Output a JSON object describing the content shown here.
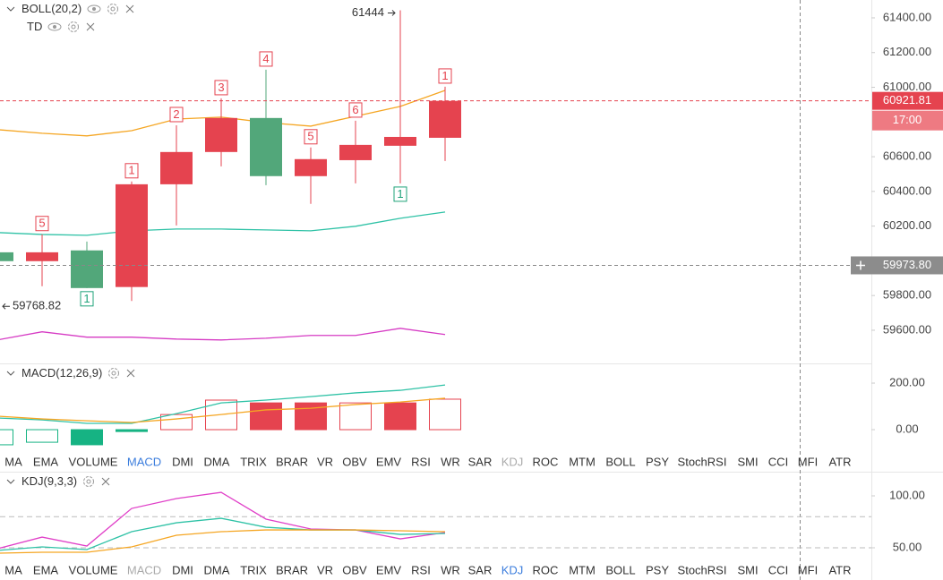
{
  "chart_data": [
    {
      "type": "candlestick",
      "title": "BOLL(20,2)",
      "overlay_title": "TD",
      "categories": [
        null,
        null,
        null,
        null,
        null,
        null,
        null,
        null,
        null,
        null,
        null
      ],
      "open": [
        60049,
        59998,
        60060,
        59849,
        60441,
        60627,
        60823,
        60488,
        60580,
        60663,
        60709
      ],
      "high": [
        60075,
        60153,
        60111,
        60457,
        60781,
        60936,
        61101,
        60653,
        60807,
        61444,
        61003
      ],
      "low": [
        59975,
        59854,
        59843,
        59768.82,
        60204,
        60544,
        60436,
        60328,
        60446,
        60446,
        60575
      ],
      "close": [
        59998,
        60049,
        59843,
        60441,
        60627,
        60823,
        60488,
        60586,
        60668,
        60714,
        60921.81
      ],
      "up_color": "#e5434f",
      "down_color": "#52a77a",
      "series": [
        {
          "color": "#f5a623",
          "values": [
            60756,
            60735,
            60720,
            60750,
            60817,
            60828,
            60797,
            60776,
            60833,
            60890,
            60982
          ]
        },
        {
          "color": "#2fc2a6",
          "values": [
            60163,
            60152,
            60147,
            60173,
            60183,
            60183,
            60178,
            60173,
            60199,
            60245,
            60281
          ]
        },
        {
          "color": "#d63bc4",
          "values": [
            59544,
            59591,
            59560,
            59560,
            59549,
            59544,
            59554,
            59570,
            59570,
            59611,
            59575
          ]
        }
      ],
      "td_marks": [
        {
          "index": 1,
          "value": 5,
          "position": "above",
          "color": "#e5434f"
        },
        {
          "index": 2,
          "value": 1,
          "position": "below",
          "color": "#1fa37a"
        },
        {
          "index": 3,
          "value": 1,
          "position": "above",
          "color": "#e5434f"
        },
        {
          "index": 4,
          "value": 2,
          "position": "above",
          "color": "#e5434f"
        },
        {
          "index": 5,
          "value": 3,
          "position": "above",
          "color": "#e5434f"
        },
        {
          "index": 6,
          "value": 4,
          "position": "above",
          "color": "#e5434f"
        },
        {
          "index": 7,
          "value": 5,
          "position": "above",
          "color": "#e5434f"
        },
        {
          "index": 8,
          "value": 6,
          "position": "above",
          "color": "#e5434f"
        },
        {
          "index": 9,
          "value": 1,
          "position": "below",
          "color": "#1fa37a"
        },
        {
          "index": 10,
          "value": 1,
          "position": "above",
          "color": "#e5434f"
        }
      ],
      "countdown": "17:00",
      "crosshair": {
        "value": 59973.8,
        "label": "59973.80"
      },
      "ylim": [
        59414,
        61503
      ],
      "yticks": [
        {
          "value": 59600,
          "label": "59600.00"
        },
        {
          "value": 59800,
          "label": "59800.00"
        },
        {
          "value": 60200,
          "label": "60200.00"
        },
        {
          "value": 60400,
          "label": "60400.00"
        },
        {
          "value": 60600,
          "label": "60600.00"
        },
        {
          "value": 61000,
          "label": "61000.00"
        },
        {
          "value": 61200,
          "label": "61200.00"
        },
        {
          "value": 61400,
          "label": "61400.00"
        }
      ]
    },
    {
      "type": "macd",
      "title": "MACD(12,26,9)",
      "categories": [
        null,
        null,
        null,
        null,
        null,
        null,
        null,
        null,
        null,
        null,
        null
      ],
      "values": [
        -65,
        -54,
        -65,
        -8,
        65,
        127,
        115,
        115,
        115,
        115,
        131
      ],
      "styles": [
        "hollow",
        "hollow",
        "filled",
        "filled",
        "hollow",
        "hollow",
        "filled",
        "filled",
        "hollow",
        "filled",
        "hollow"
      ],
      "pos_color": "#e5434f",
      "neg_color": "#16b383",
      "series": [
        {
          "color": "#2fc2a6",
          "values": [
            50,
            42,
            27,
            27,
            69,
            115,
            127,
            142,
            158,
            169,
            192
          ]
        },
        {
          "color": "#f5a623",
          "values": [
            58,
            46,
            38,
            31,
            46,
            65,
            85,
            92,
            108,
            119,
            135
          ]
        }
      ],
      "ylim": [
        -96,
        277
      ],
      "yticks": [
        {
          "value": 0,
          "label": "0.00"
        },
        {
          "value": 200,
          "label": "200.00"
        }
      ]
    },
    {
      "type": "line",
      "title": "KDJ(9,3,3)",
      "categories": [
        null,
        null,
        null,
        null,
        null,
        null,
        null,
        null,
        null,
        null,
        null
      ],
      "series": [
        {
          "color": "#e040c8",
          "values": [
            49.1,
            60.3,
            51.7,
            87.9,
            97.4,
            103.4,
            77.6,
            68.1,
            67.2,
            58.6,
            64.7
          ]
        },
        {
          "color": "#2fc2a6",
          "values": [
            47.4,
            50.9,
            48.3,
            65.5,
            74.1,
            78.4,
            69.8,
            67.2,
            67.2,
            62.9,
            63.8
          ]
        },
        {
          "color": "#f5a623",
          "values": [
            44.8,
            45.7,
            45.7,
            50.9,
            62.1,
            65.5,
            67.2,
            67.2,
            67.2,
            66.4,
            65.5
          ]
        }
      ],
      "levels": [
        80,
        50
      ],
      "ylim": [
        38.8,
        120.7
      ],
      "yticks": [
        {
          "value": 50,
          "label": "50.00"
        },
        {
          "value": 100,
          "label": "100.00"
        }
      ]
    }
  ],
  "indicator_tabs": [
    "MA",
    "EMA",
    "VOLUME",
    "MACD",
    "DMI",
    "DMA",
    "TRIX",
    "BRAR",
    "VR",
    "OBV",
    "EMV",
    "RSI",
    "WR",
    "SAR",
    "KDJ",
    "ROC",
    "MTM",
    "BOLL",
    "PSY",
    "StochRSI",
    "SMI",
    "CCI",
    "MFI",
    "ATR"
  ],
  "toolbars": [
    {
      "active": 3,
      "dimmed": 14
    },
    {
      "active": 14,
      "dimmed": 3
    }
  ]
}
